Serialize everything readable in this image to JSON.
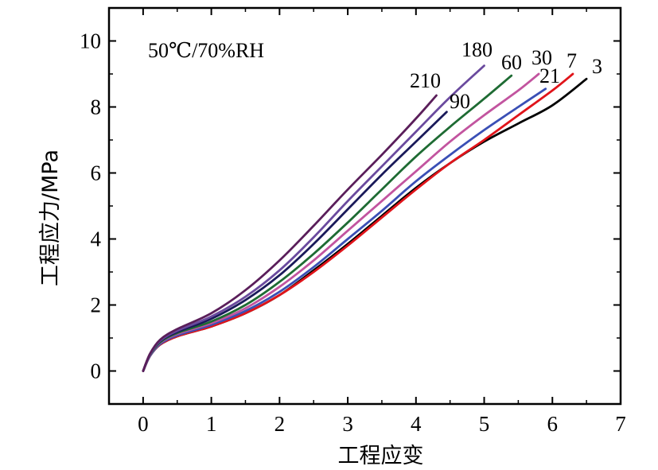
{
  "chart_data": {
    "type": "line",
    "title": "",
    "xlabel": "工程应变",
    "ylabel": "工程应力/MPa",
    "annotation": "50℃/70%RH",
    "xlim": [
      -0.5,
      7
    ],
    "ylim": [
      -1,
      11
    ],
    "x_ticks": [
      0,
      1,
      2,
      3,
      4,
      5,
      6,
      7
    ],
    "y_ticks": [
      0,
      2,
      4,
      6,
      8,
      10
    ],
    "grid": false,
    "legend": "none",
    "series": [
      {
        "name": "3",
        "color": "#000000",
        "points": [
          [
            0,
            0
          ],
          [
            0.1,
            0.45
          ],
          [
            0.25,
            0.8
          ],
          [
            0.5,
            1.05
          ],
          [
            1,
            1.35
          ],
          [
            1.5,
            1.75
          ],
          [
            2,
            2.3
          ],
          [
            2.5,
            3.05
          ],
          [
            3,
            3.85
          ],
          [
            3.5,
            4.7
          ],
          [
            4,
            5.55
          ],
          [
            4.5,
            6.3
          ],
          [
            5,
            6.95
          ],
          [
            5.5,
            7.5
          ],
          [
            6,
            8.05
          ],
          [
            6.5,
            8.85
          ]
        ]
      },
      {
        "name": "7",
        "color": "#e0141a",
        "points": [
          [
            0,
            0
          ],
          [
            0.1,
            0.45
          ],
          [
            0.25,
            0.8
          ],
          [
            0.5,
            1.05
          ],
          [
            1,
            1.35
          ],
          [
            1.5,
            1.75
          ],
          [
            2,
            2.3
          ],
          [
            2.5,
            3.0
          ],
          [
            3,
            3.8
          ],
          [
            3.5,
            4.65
          ],
          [
            4,
            5.5
          ],
          [
            4.5,
            6.3
          ],
          [
            5,
            7.0
          ],
          [
            5.5,
            7.75
          ],
          [
            6,
            8.5
          ],
          [
            6.3,
            9.0
          ]
        ]
      },
      {
        "name": "21",
        "color": "#3a4fb5",
        "points": [
          [
            0,
            0
          ],
          [
            0.1,
            0.45
          ],
          [
            0.25,
            0.82
          ],
          [
            0.5,
            1.08
          ],
          [
            1,
            1.4
          ],
          [
            1.5,
            1.82
          ],
          [
            2,
            2.4
          ],
          [
            2.5,
            3.15
          ],
          [
            3,
            4.0
          ],
          [
            3.5,
            4.85
          ],
          [
            4,
            5.75
          ],
          [
            4.5,
            6.55
          ],
          [
            5,
            7.3
          ],
          [
            5.5,
            8.0
          ],
          [
            5.9,
            8.55
          ]
        ]
      },
      {
        "name": "30",
        "color": "#c2549f",
        "points": [
          [
            0,
            0
          ],
          [
            0.1,
            0.47
          ],
          [
            0.25,
            0.85
          ],
          [
            0.5,
            1.12
          ],
          [
            1,
            1.45
          ],
          [
            1.5,
            1.9
          ],
          [
            2,
            2.55
          ],
          [
            2.5,
            3.35
          ],
          [
            3,
            4.25
          ],
          [
            3.5,
            5.15
          ],
          [
            4,
            6.05
          ],
          [
            4.5,
            6.95
          ],
          [
            5,
            7.75
          ],
          [
            5.5,
            8.5
          ],
          [
            5.8,
            9.0
          ]
        ]
      },
      {
        "name": "60",
        "color": "#1e6b33",
        "points": [
          [
            0,
            0
          ],
          [
            0.1,
            0.48
          ],
          [
            0.25,
            0.87
          ],
          [
            0.5,
            1.15
          ],
          [
            1,
            1.5
          ],
          [
            1.5,
            2.0
          ],
          [
            2,
            2.7
          ],
          [
            2.5,
            3.55
          ],
          [
            3,
            4.5
          ],
          [
            3.5,
            5.5
          ],
          [
            4,
            6.5
          ],
          [
            4.5,
            7.4
          ],
          [
            5,
            8.25
          ],
          [
            5.4,
            8.95
          ]
        ]
      },
      {
        "name": "90",
        "color": "#1a1a5a",
        "points": [
          [
            0,
            0
          ],
          [
            0.1,
            0.5
          ],
          [
            0.25,
            0.9
          ],
          [
            0.5,
            1.18
          ],
          [
            1,
            1.58
          ],
          [
            1.5,
            2.15
          ],
          [
            2,
            2.9
          ],
          [
            2.5,
            3.85
          ],
          [
            3,
            4.9
          ],
          [
            3.5,
            5.95
          ],
          [
            4,
            6.95
          ],
          [
            4.45,
            7.85
          ]
        ]
      },
      {
        "name": "180",
        "color": "#6a4a9e",
        "points": [
          [
            0,
            0
          ],
          [
            0.1,
            0.5
          ],
          [
            0.25,
            0.92
          ],
          [
            0.5,
            1.22
          ],
          [
            1,
            1.65
          ],
          [
            1.5,
            2.25
          ],
          [
            2,
            3.05
          ],
          [
            2.5,
            4.05
          ],
          [
            3,
            5.15
          ],
          [
            3.5,
            6.2
          ],
          [
            4,
            7.25
          ],
          [
            4.5,
            8.3
          ],
          [
            5,
            9.25
          ]
        ]
      },
      {
        "name": "210",
        "color": "#5a1e5a",
        "points": [
          [
            0,
            0
          ],
          [
            0.1,
            0.52
          ],
          [
            0.25,
            0.95
          ],
          [
            0.5,
            1.27
          ],
          [
            1,
            1.75
          ],
          [
            1.5,
            2.45
          ],
          [
            2,
            3.35
          ],
          [
            2.5,
            4.4
          ],
          [
            3,
            5.5
          ],
          [
            3.5,
            6.55
          ],
          [
            4,
            7.65
          ],
          [
            4.3,
            8.35
          ]
        ]
      }
    ]
  }
}
